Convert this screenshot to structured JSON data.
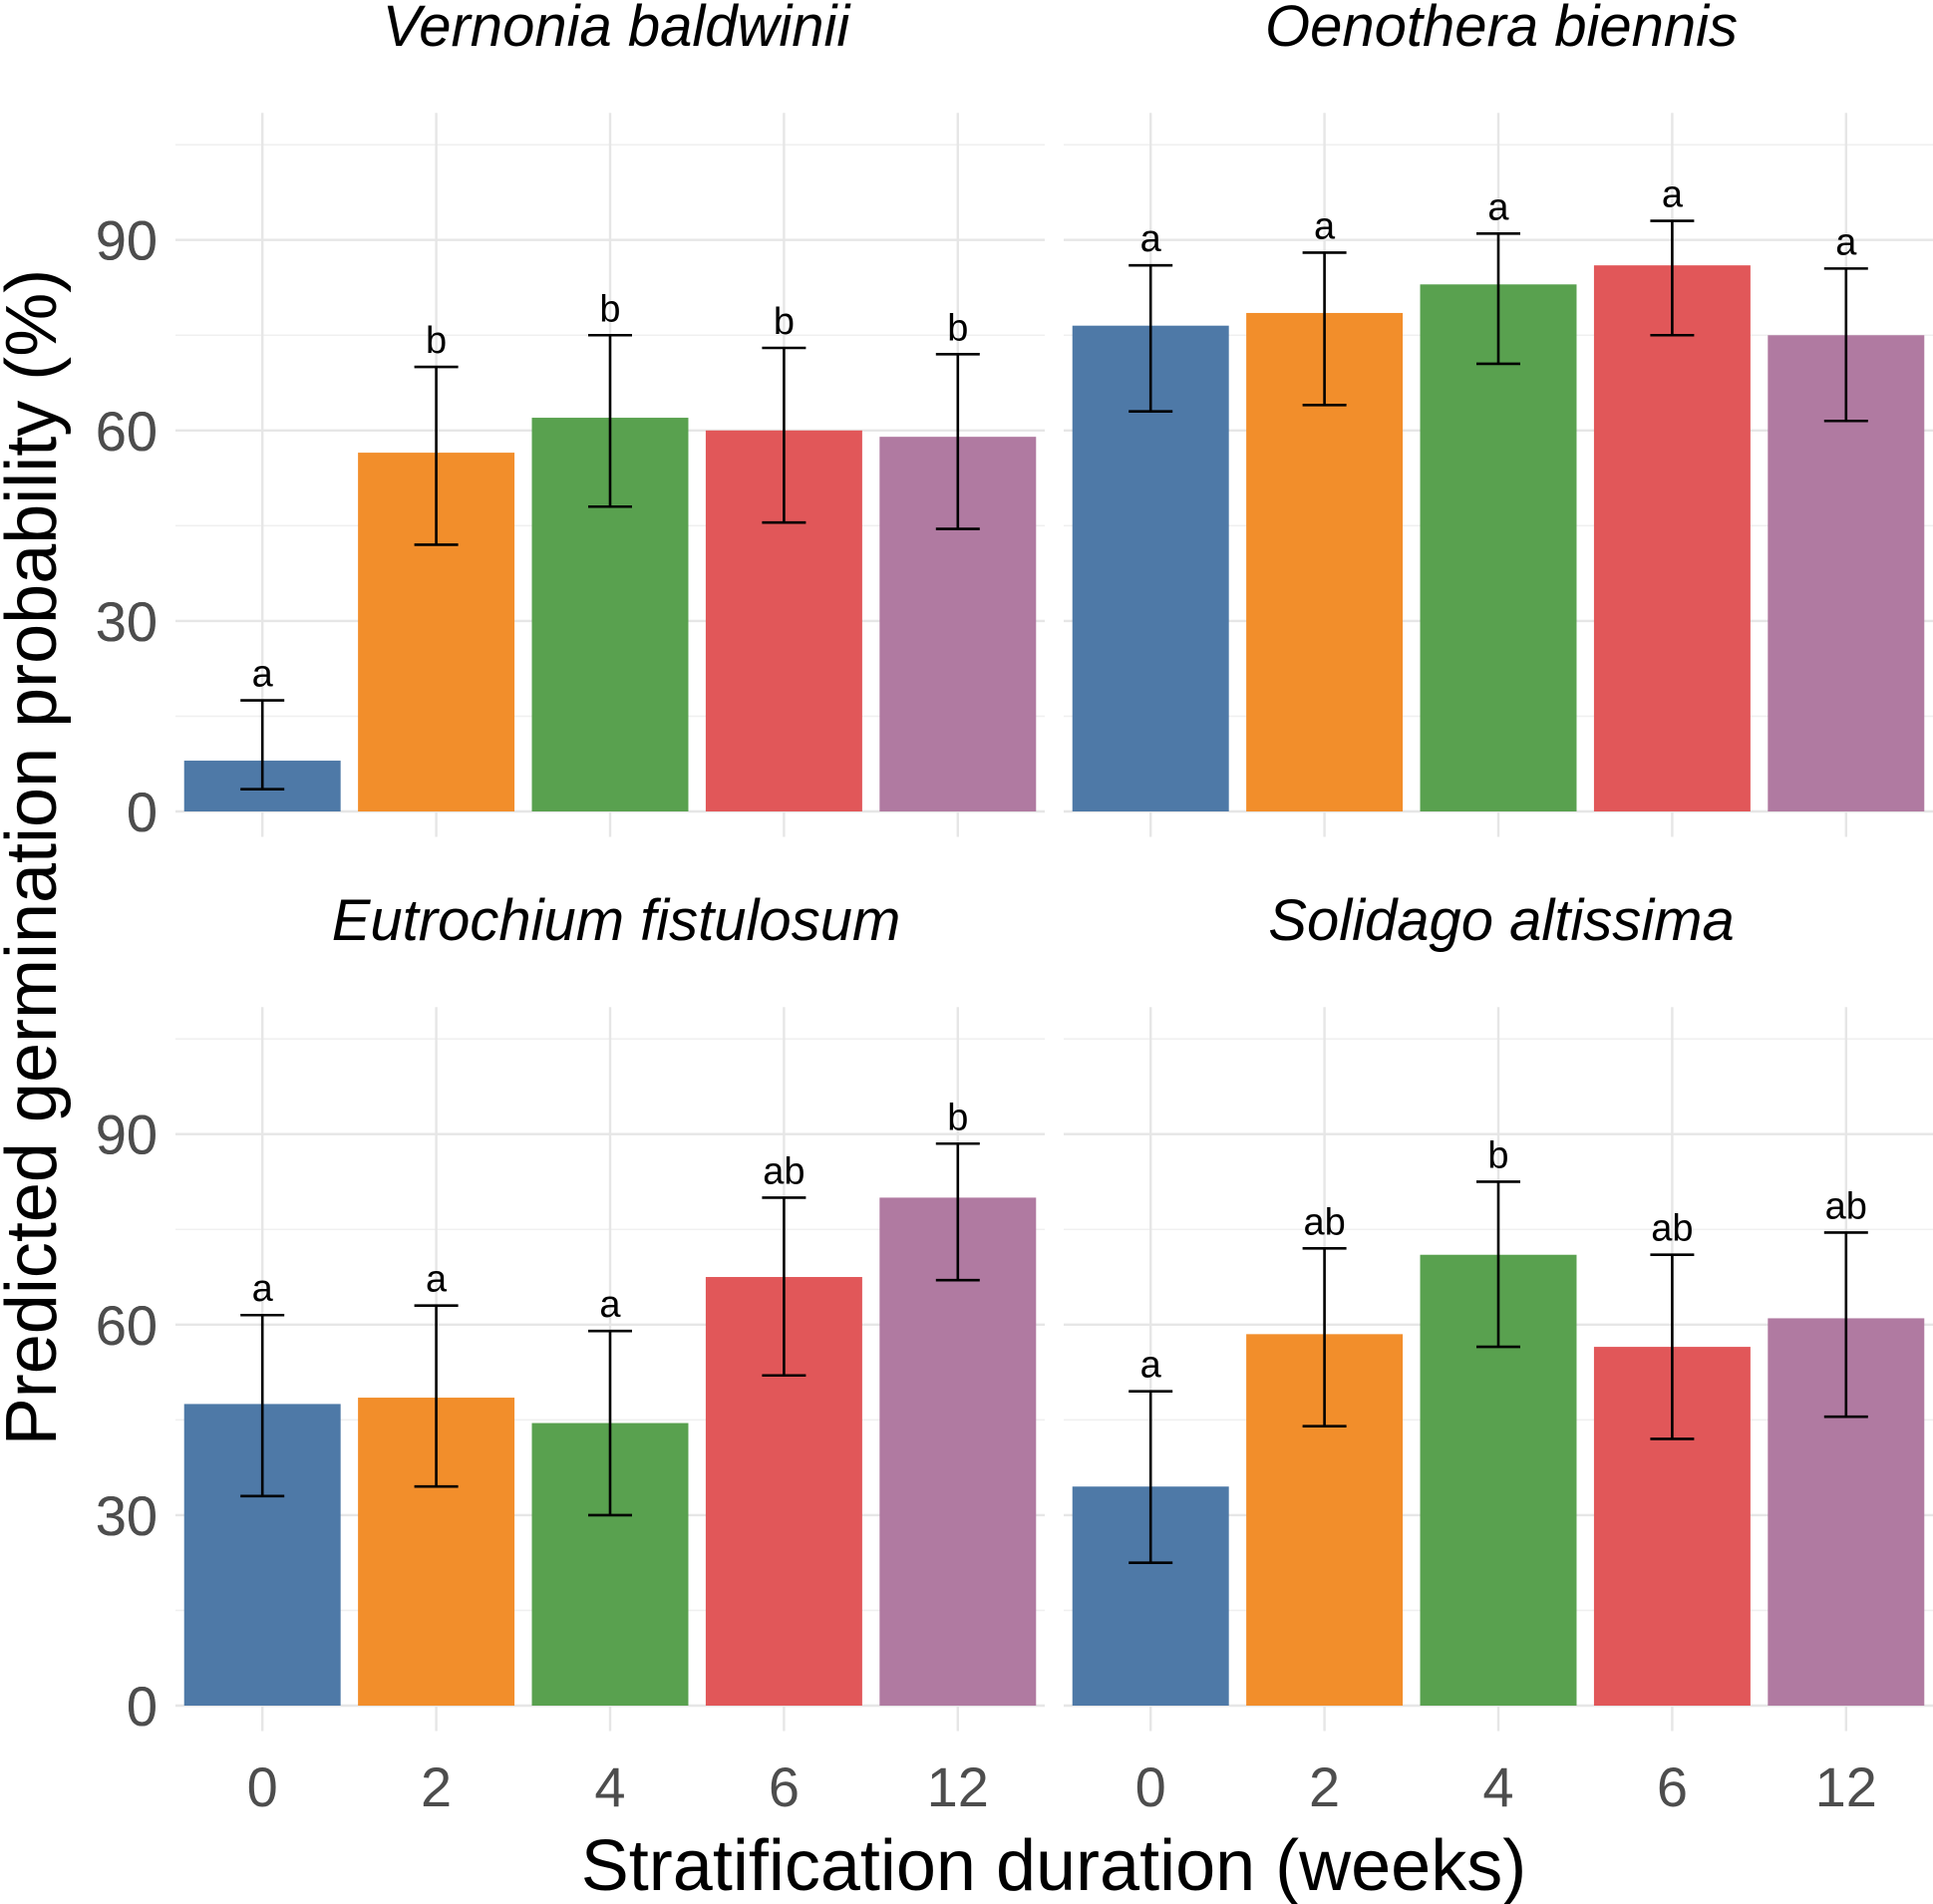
{
  "chart_data": {
    "type": "bar",
    "xlabel": "Stratification duration (weeks)",
    "ylabel": "Predicted germination probability (%)",
    "categories": [
      "0",
      "2",
      "4",
      "6",
      "12"
    ],
    "yticks": [
      0,
      30,
      60,
      90
    ],
    "ylim": [
      -4,
      110
    ],
    "grid": true,
    "colors": [
      "#4e79a7",
      "#f28e2b",
      "#59a14f",
      "#e15759",
      "#b07aa1"
    ],
    "panels": [
      {
        "title": "Vernonia baldwinii",
        "values": [
          8,
          56.5,
          62,
          60,
          59
        ],
        "lower": [
          3.5,
          42,
          48,
          45.5,
          44.5
        ],
        "upper": [
          17.5,
          70,
          75,
          73,
          72
        ],
        "letters": [
          "a",
          "b",
          "b",
          "b",
          "b"
        ]
      },
      {
        "title": "Oenothera biennis",
        "values": [
          76.5,
          78.5,
          83,
          86,
          75
        ],
        "lower": [
          63,
          64,
          70.5,
          75,
          61.5
        ],
        "upper": [
          86,
          88,
          91,
          93,
          85.5
        ],
        "letters": [
          "a",
          "a",
          "a",
          "a",
          "a"
        ]
      },
      {
        "title": "Eutrochium fistulosum",
        "values": [
          47.5,
          48.5,
          44.5,
          67.5,
          80
        ],
        "lower": [
          33,
          34.5,
          30,
          52,
          67
        ],
        "upper": [
          61.5,
          63,
          59,
          80,
          88.5
        ],
        "letters": [
          "a",
          "a",
          "a",
          "ab",
          "b"
        ]
      },
      {
        "title": "Solidago altissima",
        "values": [
          34.5,
          58.5,
          71,
          56.5,
          61
        ],
        "lower": [
          22.5,
          44,
          56.5,
          42,
          45.5
        ],
        "upper": [
          49.5,
          72,
          82.5,
          71,
          74.5
        ],
        "letters": [
          "a",
          "ab",
          "b",
          "ab",
          "ab"
        ]
      }
    ]
  }
}
